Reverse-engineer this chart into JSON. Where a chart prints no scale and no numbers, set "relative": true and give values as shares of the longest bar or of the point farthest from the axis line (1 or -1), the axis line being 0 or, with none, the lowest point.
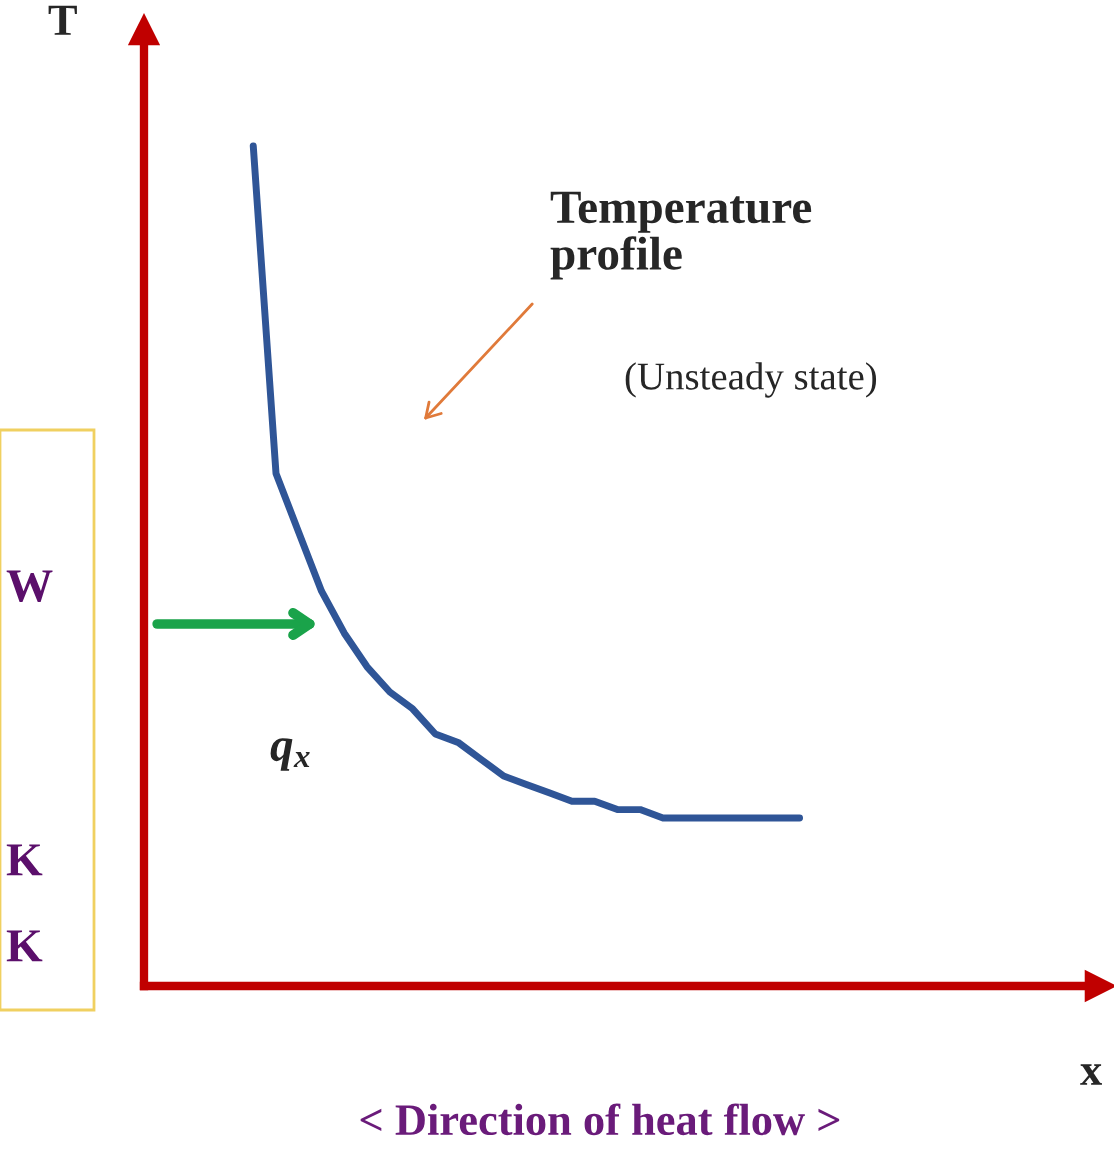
{
  "chart_data": {
    "type": "line",
    "relative": true,
    "ylabel": "T",
    "categories": [
      null,
      null,
      null,
      null,
      null,
      null,
      null,
      null,
      null,
      null,
      null,
      null,
      null,
      null,
      null,
      null,
      null,
      null,
      null,
      null,
      null,
      null,
      null,
      null,
      null
    ],
    "series": [
      {
        "color": "#2f5597",
        "values": [
          1,
          0.61,
          0.54,
          0.47,
          0.42,
          0.38,
          0.35,
          0.33,
          0.3,
          0.29,
          0.27,
          0.25,
          0.24,
          0.23,
          0.22,
          0.22,
          0.21,
          0.21,
          0.2,
          0.2,
          0.2,
          0.2,
          0.2,
          0.2,
          0.2
        ]
      }
    ],
    "annotations": [
      "Temperature\nprofile",
      "(Unsteady state)",
      "q$_{x}$",
      "< Direction of heat flow >",
      "W",
      "K",
      "K",
      "x"
    ],
    "line_style": "solid"
  }
}
